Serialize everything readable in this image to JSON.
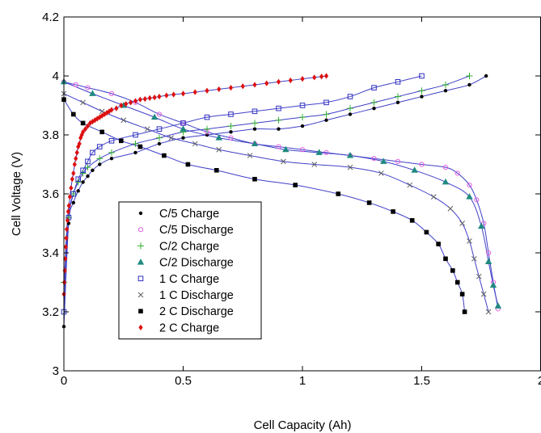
{
  "chart_data": {
    "type": "scatter",
    "title": "",
    "xlabel": "Cell Capacity (Ah)",
    "ylabel": "Cell Voltage (V)",
    "xlim": [
      0,
      2
    ],
    "ylim": [
      3,
      4.2
    ],
    "x_ticks": [
      "0",
      "0.5",
      "1",
      "1.5",
      "2"
    ],
    "y_ticks": [
      "3",
      "3.2",
      "3.4",
      "3.6",
      "3.8",
      "4",
      "4.2"
    ],
    "grid": false,
    "legend_position": "lower-left",
    "model_line_color": "#4040c8",
    "series": [
      {
        "name": "C/5 Charge",
        "marker": "dot",
        "color": "#000000",
        "x": [
          0,
          0.02,
          0.04,
          0.06,
          0.08,
          0.1,
          0.12,
          0.15,
          0.2,
          0.3,
          0.4,
          0.5,
          0.6,
          0.7,
          0.8,
          0.9,
          1.0,
          1.1,
          1.2,
          1.3,
          1.4,
          1.5,
          1.6,
          1.7,
          1.77
        ],
        "y": [
          3.15,
          3.5,
          3.57,
          3.61,
          3.64,
          3.66,
          3.68,
          3.7,
          3.72,
          3.74,
          3.77,
          3.79,
          3.8,
          3.81,
          3.82,
          3.82,
          3.83,
          3.85,
          3.87,
          3.89,
          3.91,
          3.93,
          3.95,
          3.97,
          4.0
        ]
      },
      {
        "name": "C/5 Discharge",
        "marker": "circle",
        "color": "#e060e0",
        "x": [
          0,
          0.05,
          0.1,
          0.2,
          0.3,
          0.4,
          0.5,
          0.6,
          0.7,
          0.8,
          0.9,
          1.0,
          1.1,
          1.2,
          1.3,
          1.4,
          1.5,
          1.6,
          1.65,
          1.7,
          1.73,
          1.76,
          1.78,
          1.8,
          1.82
        ],
        "y": [
          3.98,
          3.97,
          3.96,
          3.94,
          3.91,
          3.87,
          3.84,
          3.81,
          3.79,
          3.77,
          3.76,
          3.75,
          3.74,
          3.73,
          3.72,
          3.71,
          3.7,
          3.69,
          3.67,
          3.63,
          3.58,
          3.5,
          3.4,
          3.3,
          3.21
        ]
      },
      {
        "name": "C/2 Charge",
        "marker": "plus",
        "color": "#30b030",
        "x": [
          0,
          0.02,
          0.04,
          0.06,
          0.08,
          0.1,
          0.15,
          0.2,
          0.3,
          0.4,
          0.5,
          0.6,
          0.7,
          0.8,
          0.9,
          1.0,
          1.1,
          1.2,
          1.3,
          1.4,
          1.5,
          1.6,
          1.7
        ],
        "y": [
          3.3,
          3.52,
          3.6,
          3.64,
          3.67,
          3.69,
          3.72,
          3.74,
          3.77,
          3.79,
          3.81,
          3.82,
          3.83,
          3.84,
          3.85,
          3.86,
          3.87,
          3.89,
          3.91,
          3.93,
          3.95,
          3.97,
          4.0
        ]
      },
      {
        "name": "C/2 Discharge",
        "marker": "triangle",
        "color": "#208a80",
        "x": [
          0,
          0.12,
          0.25,
          0.38,
          0.5,
          0.65,
          0.8,
          0.93,
          1.07,
          1.2,
          1.34,
          1.47,
          1.6,
          1.7,
          1.75,
          1.78,
          1.8,
          1.82
        ],
        "y": [
          3.98,
          3.94,
          3.9,
          3.86,
          3.82,
          3.79,
          3.77,
          3.75,
          3.74,
          3.73,
          3.71,
          3.68,
          3.64,
          3.59,
          3.49,
          3.37,
          3.29,
          3.22
        ]
      },
      {
        "name": "1 C Charge",
        "marker": "square-open",
        "color": "#3030c0",
        "x": [
          0,
          0.02,
          0.04,
          0.06,
          0.08,
          0.1,
          0.12,
          0.15,
          0.2,
          0.3,
          0.4,
          0.5,
          0.6,
          0.7,
          0.8,
          0.9,
          1.0,
          1.1,
          1.2,
          1.3,
          1.4,
          1.5
        ],
        "y": [
          3.2,
          3.52,
          3.6,
          3.65,
          3.68,
          3.71,
          3.74,
          3.76,
          3.78,
          3.8,
          3.82,
          3.84,
          3.86,
          3.87,
          3.88,
          3.89,
          3.9,
          3.91,
          3.93,
          3.96,
          3.98,
          4.0
        ]
      },
      {
        "name": "1 C Discharge",
        "marker": "x",
        "color": "#606060",
        "x": [
          0,
          0.08,
          0.16,
          0.25,
          0.35,
          0.45,
          0.55,
          0.65,
          0.78,
          0.92,
          1.05,
          1.2,
          1.33,
          1.45,
          1.55,
          1.62,
          1.67,
          1.7,
          1.72,
          1.74,
          1.76,
          1.78
        ],
        "y": [
          3.94,
          3.91,
          3.88,
          3.85,
          3.82,
          3.79,
          3.77,
          3.75,
          3.73,
          3.71,
          3.7,
          3.69,
          3.67,
          3.63,
          3.59,
          3.55,
          3.5,
          3.44,
          3.38,
          3.32,
          3.26,
          3.2
        ]
      },
      {
        "name": "2 C Discharge",
        "marker": "square-filled",
        "color": "#000000",
        "x": [
          0,
          0.04,
          0.08,
          0.16,
          0.24,
          0.32,
          0.42,
          0.52,
          0.64,
          0.8,
          0.97,
          1.15,
          1.28,
          1.38,
          1.46,
          1.52,
          1.57,
          1.6,
          1.63,
          1.65,
          1.67,
          1.68
        ],
        "y": [
          3.92,
          3.87,
          3.84,
          3.81,
          3.78,
          3.76,
          3.73,
          3.7,
          3.68,
          3.65,
          3.63,
          3.6,
          3.57,
          3.54,
          3.51,
          3.47,
          3.43,
          3.38,
          3.34,
          3.3,
          3.26,
          3.2
        ]
      },
      {
        "name": "2 C Charge",
        "marker": "diamond",
        "color": "#dd1010",
        "x": [
          0,
          0.002,
          0.004,
          0.006,
          0.008,
          0.01,
          0.012,
          0.015,
          0.018,
          0.021,
          0.025,
          0.03,
          0.035,
          0.04,
          0.045,
          0.05,
          0.055,
          0.06,
          0.065,
          0.07,
          0.075,
          0.08,
          0.09,
          0.1,
          0.11,
          0.12,
          0.13,
          0.14,
          0.15,
          0.16,
          0.17,
          0.18,
          0.19,
          0.2,
          0.22,
          0.24,
          0.26,
          0.28,
          0.3,
          0.32,
          0.34,
          0.36,
          0.38,
          0.4,
          0.43,
          0.46,
          0.5,
          0.55,
          0.6,
          0.65,
          0.7,
          0.75,
          0.8,
          0.85,
          0.9,
          0.95,
          1.0,
          1.05,
          1.08,
          1.1
        ],
        "y": [
          3.26,
          3.3,
          3.34,
          3.38,
          3.42,
          3.45,
          3.48,
          3.51,
          3.54,
          3.56,
          3.59,
          3.62,
          3.65,
          3.67,
          3.7,
          3.72,
          3.74,
          3.76,
          3.77,
          3.79,
          3.8,
          3.81,
          3.82,
          3.83,
          3.84,
          3.845,
          3.85,
          3.855,
          3.86,
          3.865,
          3.87,
          3.875,
          3.88,
          3.885,
          3.89,
          3.9,
          3.905,
          3.91,
          3.915,
          3.92,
          3.922,
          3.925,
          3.927,
          3.93,
          3.934,
          3.937,
          3.94,
          3.945,
          3.95,
          3.955,
          3.96,
          3.965,
          3.97,
          3.975,
          3.98,
          3.985,
          3.99,
          3.995,
          3.998,
          4.0
        ]
      }
    ]
  }
}
